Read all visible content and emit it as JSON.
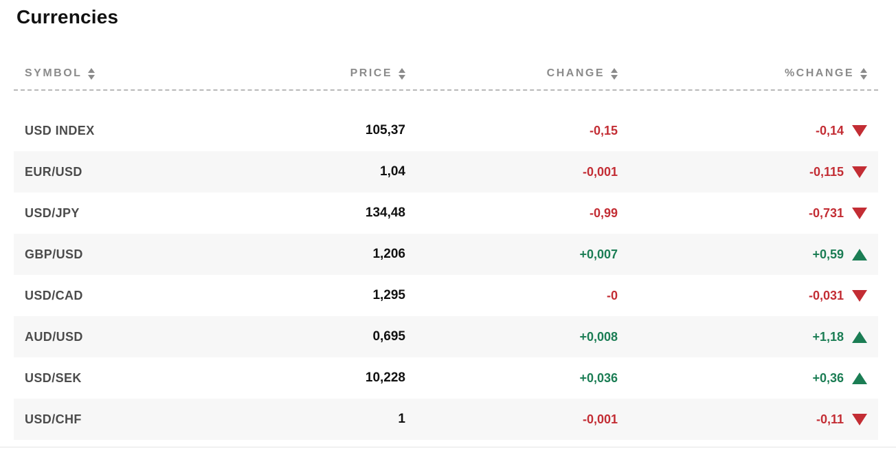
{
  "page": {
    "title": "Currencies"
  },
  "table": {
    "columns": [
      {
        "key": "symbol",
        "label": "SYMBOL"
      },
      {
        "key": "price",
        "label": "PRICE"
      },
      {
        "key": "change",
        "label": "CHANGE"
      },
      {
        "key": "pct_change",
        "label": "%CHANGE"
      }
    ],
    "rows": [
      {
        "symbol": "USD INDEX",
        "price": "105,37",
        "change": "-0,15",
        "pct_change": "-0,14",
        "direction": "down"
      },
      {
        "symbol": "EUR/USD",
        "price": "1,04",
        "change": "-0,001",
        "pct_change": "-0,115",
        "direction": "down"
      },
      {
        "symbol": "USD/JPY",
        "price": "134,48",
        "change": "-0,99",
        "pct_change": "-0,731",
        "direction": "down"
      },
      {
        "symbol": "GBP/USD",
        "price": "1,206",
        "change": "+0,007",
        "pct_change": "+0,59",
        "direction": "up"
      },
      {
        "symbol": "USD/CAD",
        "price": "1,295",
        "change": "-0",
        "pct_change": "-0,031",
        "direction": "down"
      },
      {
        "symbol": "AUD/USD",
        "price": "0,695",
        "change": "+0,008",
        "pct_change": "+1,18",
        "direction": "up"
      },
      {
        "symbol": "USD/SEK",
        "price": "10,228",
        "change": "+0,036",
        "pct_change": "+0,36",
        "direction": "up"
      },
      {
        "symbol": "USD/CHF",
        "price": "1",
        "change": "-0,001",
        "pct_change": "-0,11",
        "direction": "down"
      }
    ]
  },
  "icons": {
    "sort": "sort-updown-icon",
    "up": "arrow-up-icon",
    "down": "arrow-down-icon"
  },
  "colors": {
    "negative": "#c32d34",
    "positive": "#1b7d54",
    "header_text": "#8b8b8b",
    "symbol_text": "#4b4b4b",
    "price_text": "#111111",
    "row_stripe": "#f7f7f7",
    "dashed_divider": "#b8b8b8"
  }
}
